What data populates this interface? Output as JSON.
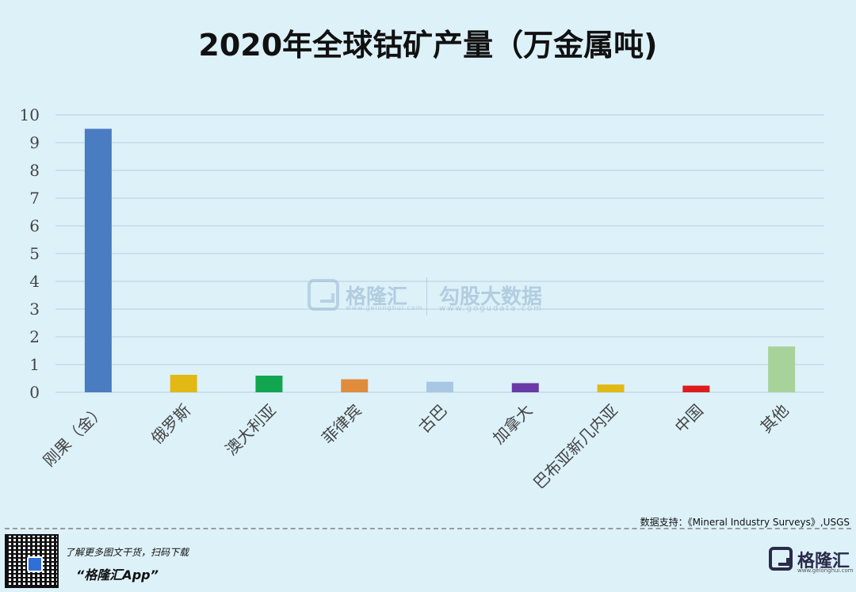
{
  "chart_data": {
    "type": "bar",
    "title": "2020年全球钴矿产量（万金属吨)",
    "categories": [
      "刚果（金）",
      "俄罗斯",
      "澳大利亚",
      "菲律宾",
      "古巴",
      "加拿大",
      "巴布亚新几内亚",
      "中国",
      "其他"
    ],
    "values": [
      9.5,
      0.63,
      0.6,
      0.47,
      0.38,
      0.33,
      0.28,
      0.24,
      1.65
    ],
    "colors": [
      "#4a7cc1",
      "#e2b814",
      "#12a650",
      "#e08c3c",
      "#a7c7e4",
      "#6a3aa6",
      "#e2b814",
      "#dd1c1c",
      "#a7d39a"
    ],
    "yticks": [
      0,
      1,
      2,
      3,
      4,
      5,
      6,
      7,
      8,
      9,
      10
    ],
    "ylim": [
      0,
      10
    ],
    "grid": true,
    "xlabel": "",
    "ylabel": ""
  },
  "watermark": {
    "brand": "格隆汇",
    "brand_url": "www.gelonghui.com",
    "data_brand": "勾股大数据",
    "data_url": "www.gogudata.com"
  },
  "source": "数据支持：《Mineral Industry Surveys》,USGS",
  "footer": {
    "promo_line": "了解更多图文干货，扫码下载",
    "app_name": "“格隆汇App”",
    "brand": "格隆汇",
    "brand_url": "www.gelonghui.com"
  }
}
